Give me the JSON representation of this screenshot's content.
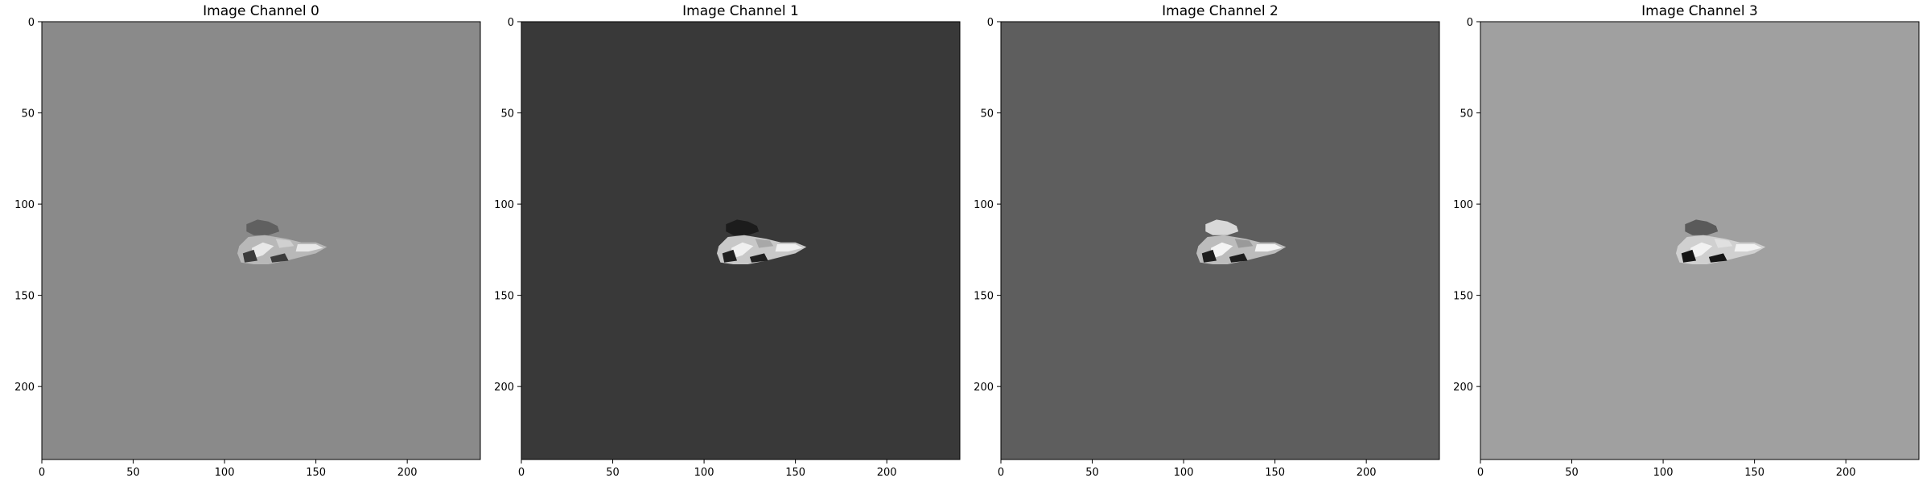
{
  "chart_data": [
    {
      "type": "image",
      "title": "Image Channel 0",
      "background": "#8a8a8a",
      "xlim": [
        0,
        240
      ],
      "ylim": [
        240,
        0
      ],
      "xticks": [
        0,
        50,
        100,
        150,
        200
      ],
      "yticks": [
        0,
        50,
        100,
        150,
        200
      ],
      "xtick_labels": [
        "0",
        "50",
        "100",
        "150",
        "200"
      ],
      "ytick_labels": [
        "0",
        "50",
        "100",
        "150",
        "200"
      ],
      "blob_tones": [
        "#606060",
        "#b8b8b8",
        "#e8e8e8",
        "#3c3c3c",
        "#d0d0d0"
      ]
    },
    {
      "type": "image",
      "title": "Image Channel 1",
      "background": "#393939",
      "xlim": [
        0,
        240
      ],
      "ylim": [
        240,
        0
      ],
      "xticks": [
        0,
        50,
        100,
        150,
        200
      ],
      "yticks": [
        0,
        50,
        100,
        150,
        200
      ],
      "xtick_labels": [
        "0",
        "50",
        "100",
        "150",
        "200"
      ],
      "ytick_labels": [
        "0",
        "50",
        "100",
        "150",
        "200"
      ],
      "blob_tones": [
        "#1c1c1c",
        "#c8c8c8",
        "#f0f0f0",
        "#202020",
        "#a8a8a8"
      ]
    },
    {
      "type": "image",
      "title": "Image Channel 2",
      "background": "#5e5e5e",
      "xlim": [
        0,
        240
      ],
      "ylim": [
        240,
        0
      ],
      "xticks": [
        0,
        50,
        100,
        150,
        200
      ],
      "yticks": [
        0,
        50,
        100,
        150,
        200
      ],
      "xtick_labels": [
        "0",
        "50",
        "100",
        "150",
        "200"
      ],
      "ytick_labels": [
        "0",
        "50",
        "100",
        "150",
        "200"
      ],
      "blob_tones": [
        "#d8d8d8",
        "#bcbcbc",
        "#f4f4f4",
        "#1e1e1e",
        "#9a9a9a"
      ]
    },
    {
      "type": "image",
      "title": "Image Channel 3",
      "background": "#a0a0a0",
      "xlim": [
        0,
        240
      ],
      "ylim": [
        240,
        0
      ],
      "xticks": [
        0,
        50,
        100,
        150,
        200
      ],
      "yticks": [
        0,
        50,
        100,
        150,
        200
      ],
      "xtick_labels": [
        "0",
        "50",
        "100",
        "150",
        "200"
      ],
      "ytick_labels": [
        "0",
        "50",
        "100",
        "150",
        "200"
      ],
      "blob_tones": [
        "#5a5a5a",
        "#d0d0d0",
        "#f2f2f2",
        "#151515",
        "#e0e0e0"
      ]
    }
  ]
}
